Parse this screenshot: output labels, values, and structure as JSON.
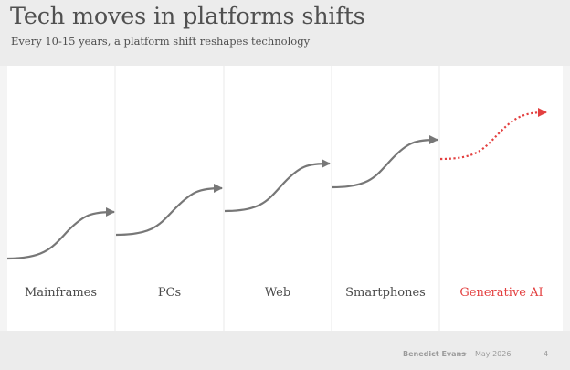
{
  "slide": {
    "title": "Tech moves in platforms shifts",
    "subtitle": "Every 10-15 years, a platform shift reshapes technology"
  },
  "platforms": [
    {
      "label": "Mainframes",
      "highlight": false
    },
    {
      "label": "PCs",
      "highlight": false
    },
    {
      "label": "Web",
      "highlight": false
    },
    {
      "label": "Smartphones",
      "highlight": false
    },
    {
      "label": "Generative AI",
      "highlight": true
    }
  ],
  "colors": {
    "curve": "#777777",
    "highlight": "#e34040",
    "panel": "#ffffff",
    "background": "#ececec"
  },
  "footer": {
    "author": "Benedict Evans",
    "separator": "—",
    "date": "May 2026",
    "page": "4"
  }
}
